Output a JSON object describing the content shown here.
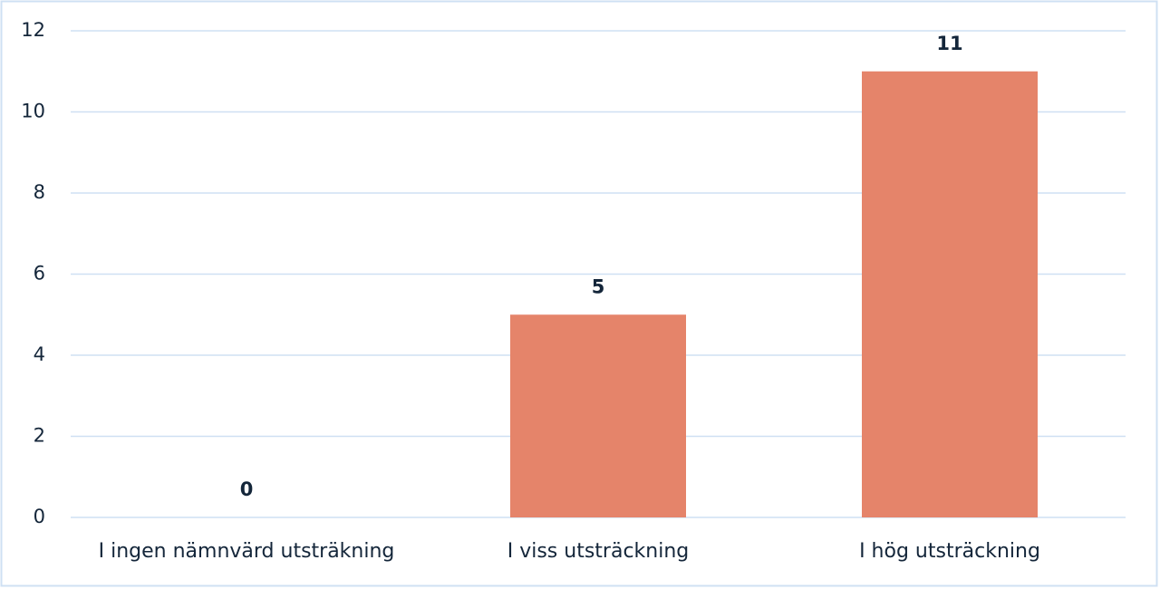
{
  "chart_data": {
    "type": "bar",
    "categories": [
      "I ingen nämnvärd utsträkning",
      "I viss utsträckning",
      "I hög utsträckning"
    ],
    "values": [
      0,
      5,
      11
    ],
    "color": "#e5846a",
    "ylim": [
      0,
      12
    ],
    "yticks": [
      0,
      2,
      4,
      6,
      8,
      10,
      12
    ],
    "grid": true,
    "data_labels": true
  }
}
